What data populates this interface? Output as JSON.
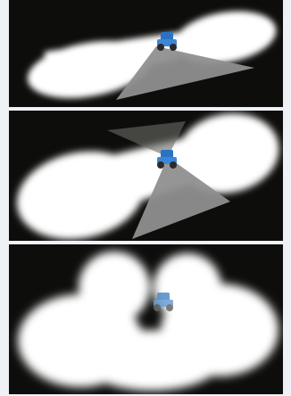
{
  "figure": {
    "panels": [
      {
        "id": "p1",
        "lobes": 2,
        "sector": "wide-down"
      },
      {
        "id": "p2",
        "lobes": 2,
        "sector": "narrow-down"
      },
      {
        "id": "p3",
        "lobes": 5,
        "sector": "none"
      }
    ],
    "colors": {
      "background": "#0d0d0b",
      "light": "#ffffff",
      "shadow_sector": "#8f8f8f",
      "vehicle_body": "#2a73c4",
      "vehicle_wheels": "#2a2a2a"
    },
    "icons": {
      "vehicle": "tractor-icon",
      "lights": "light-beam-icon"
    }
  }
}
